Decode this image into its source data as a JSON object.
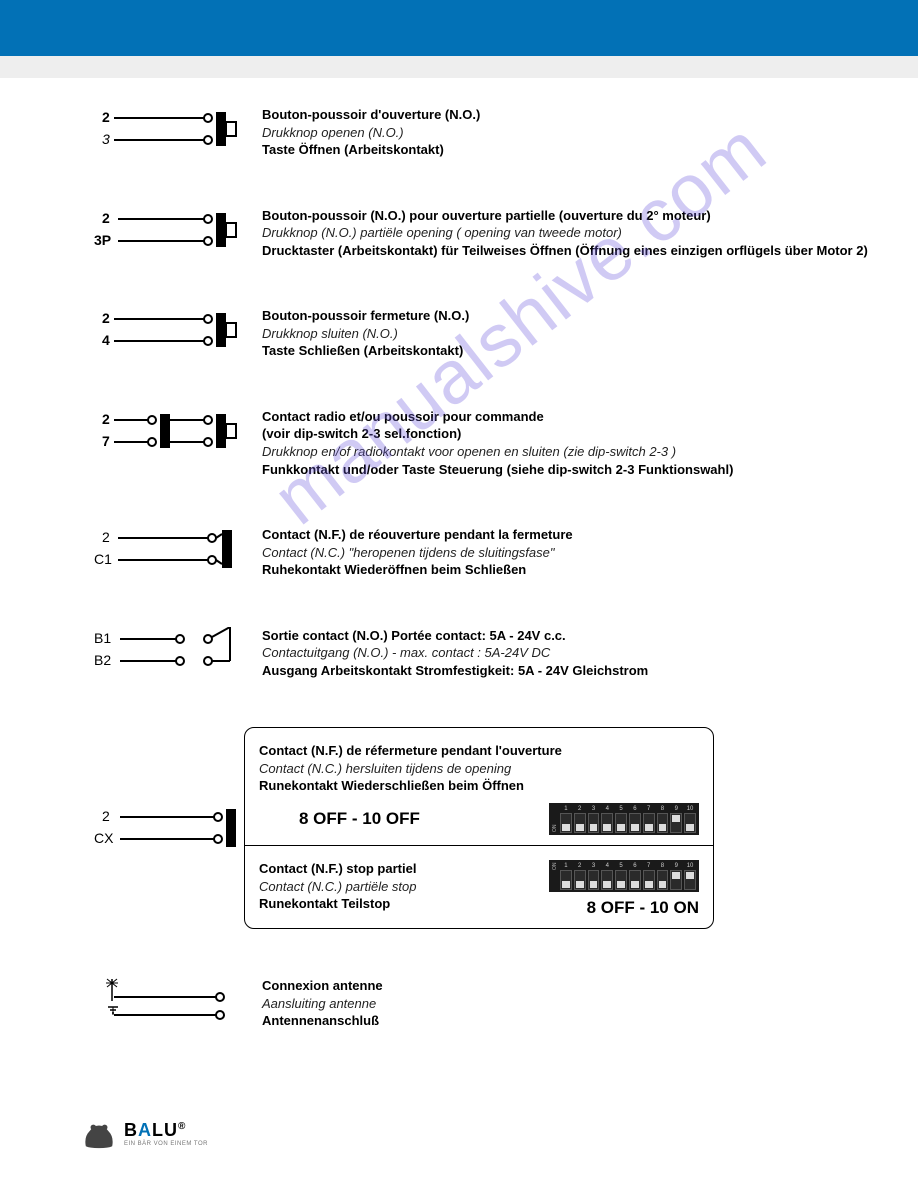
{
  "watermark": "manualshive.com",
  "colors": {
    "header": "#0271b6",
    "gray": "#eeeeee",
    "text": "#000000"
  },
  "rows": [
    {
      "pins": [
        "2",
        "3"
      ],
      "diagram_type": "no_button",
      "fr": "Bouton-poussoir d'ouverture (N.O.)",
      "nl": "Drukknop openen (N.O.)",
      "de": "Taste Öffnen (Arbeitskontakt)"
    },
    {
      "pins": [
        "2",
        "3P"
      ],
      "diagram_type": "no_button",
      "fr": "Bouton-poussoir (N.O.) pour ouverture partielle (ouverture du 2° moteur)",
      "nl": "Drukknop (N.O.) partiële opening ( opening van tweede motor)",
      "de": "Drucktaster (Arbeitskontakt) für Teilweises Öffnen (Öffnung eines einzigen orflügels über Motor 2)"
    },
    {
      "pins": [
        "2",
        "4"
      ],
      "diagram_type": "no_button",
      "fr": "Bouton-poussoir fermeture (N.O.)",
      "nl": "Drukknop sluiten (N.O.)",
      "de": "Taste Schließen (Arbeitskontakt)"
    },
    {
      "pins": [
        "2",
        "7"
      ],
      "diagram_type": "no_button_radio",
      "fr": "Contact radio et/ou poussoir pour commande",
      "fr2": "(voir dip-switch 2-3 sel.fonction)",
      "nl": "Drukknop en/of radiokontakt voor openen en sluiten (zie dip-switch 2-3 )",
      "de": "Funkkontakt und/oder Taste Steuerung (siehe dip-switch 2-3 Funktionswahl)"
    },
    {
      "pins": [
        "2",
        "C1"
      ],
      "diagram_type": "nc_contact",
      "fr": "Contact (N.F.) de réouverture pendant la fermeture",
      "nl": "Contact (N.C.) \"heropenen tijdens de sluitingsfase\"",
      "de": "Ruhekontakt Wiederöffnen beim Schließen"
    },
    {
      "pins": [
        "B1",
        "B2"
      ],
      "diagram_type": "no_output",
      "fr": "Sortie contact (N.O.) Portée contact: 5A - 24V c.c.",
      "nl": "Contactuitgang (N.O.) - max. contact : 5A-24V DC",
      "de": "Ausgang Arbeitskontakt Stromfestigkeit: 5A - 24V Gleichstrom"
    }
  ],
  "cx_row": {
    "pins": [
      "2",
      "CX"
    ],
    "section1": {
      "fr": "Contact (N.F.) de réfermeture pendant l'ouverture",
      "nl": "Contact (N.C.) hersluiten tijdens de opening",
      "de": "Runekontakt Wiederschließen beim Öffnen",
      "dip_label": "8 OFF - 10 OFF",
      "switches": [
        "off",
        "off",
        "off",
        "off",
        "off",
        "off",
        "off",
        "off",
        "on",
        "off"
      ]
    },
    "section2": {
      "fr": "Contact (N.F.) stop partiel",
      "nl": "Contact (N.C.) partiële stop",
      "de": "Runekontakt Teilstop",
      "dip_label": "8 OFF - 10 ON",
      "switches": [
        "off",
        "off",
        "off",
        "off",
        "off",
        "off",
        "off",
        "off",
        "on",
        "on"
      ]
    }
  },
  "antenna": {
    "fr": "Connexion antenne",
    "nl": "Aansluiting antenne",
    "de": "Antennenanschluß"
  },
  "logo": {
    "brand_b": "B",
    "brand_a": "A",
    "brand_lu": "LU",
    "sub": "EIN BÄR VON EINEM TOR"
  }
}
